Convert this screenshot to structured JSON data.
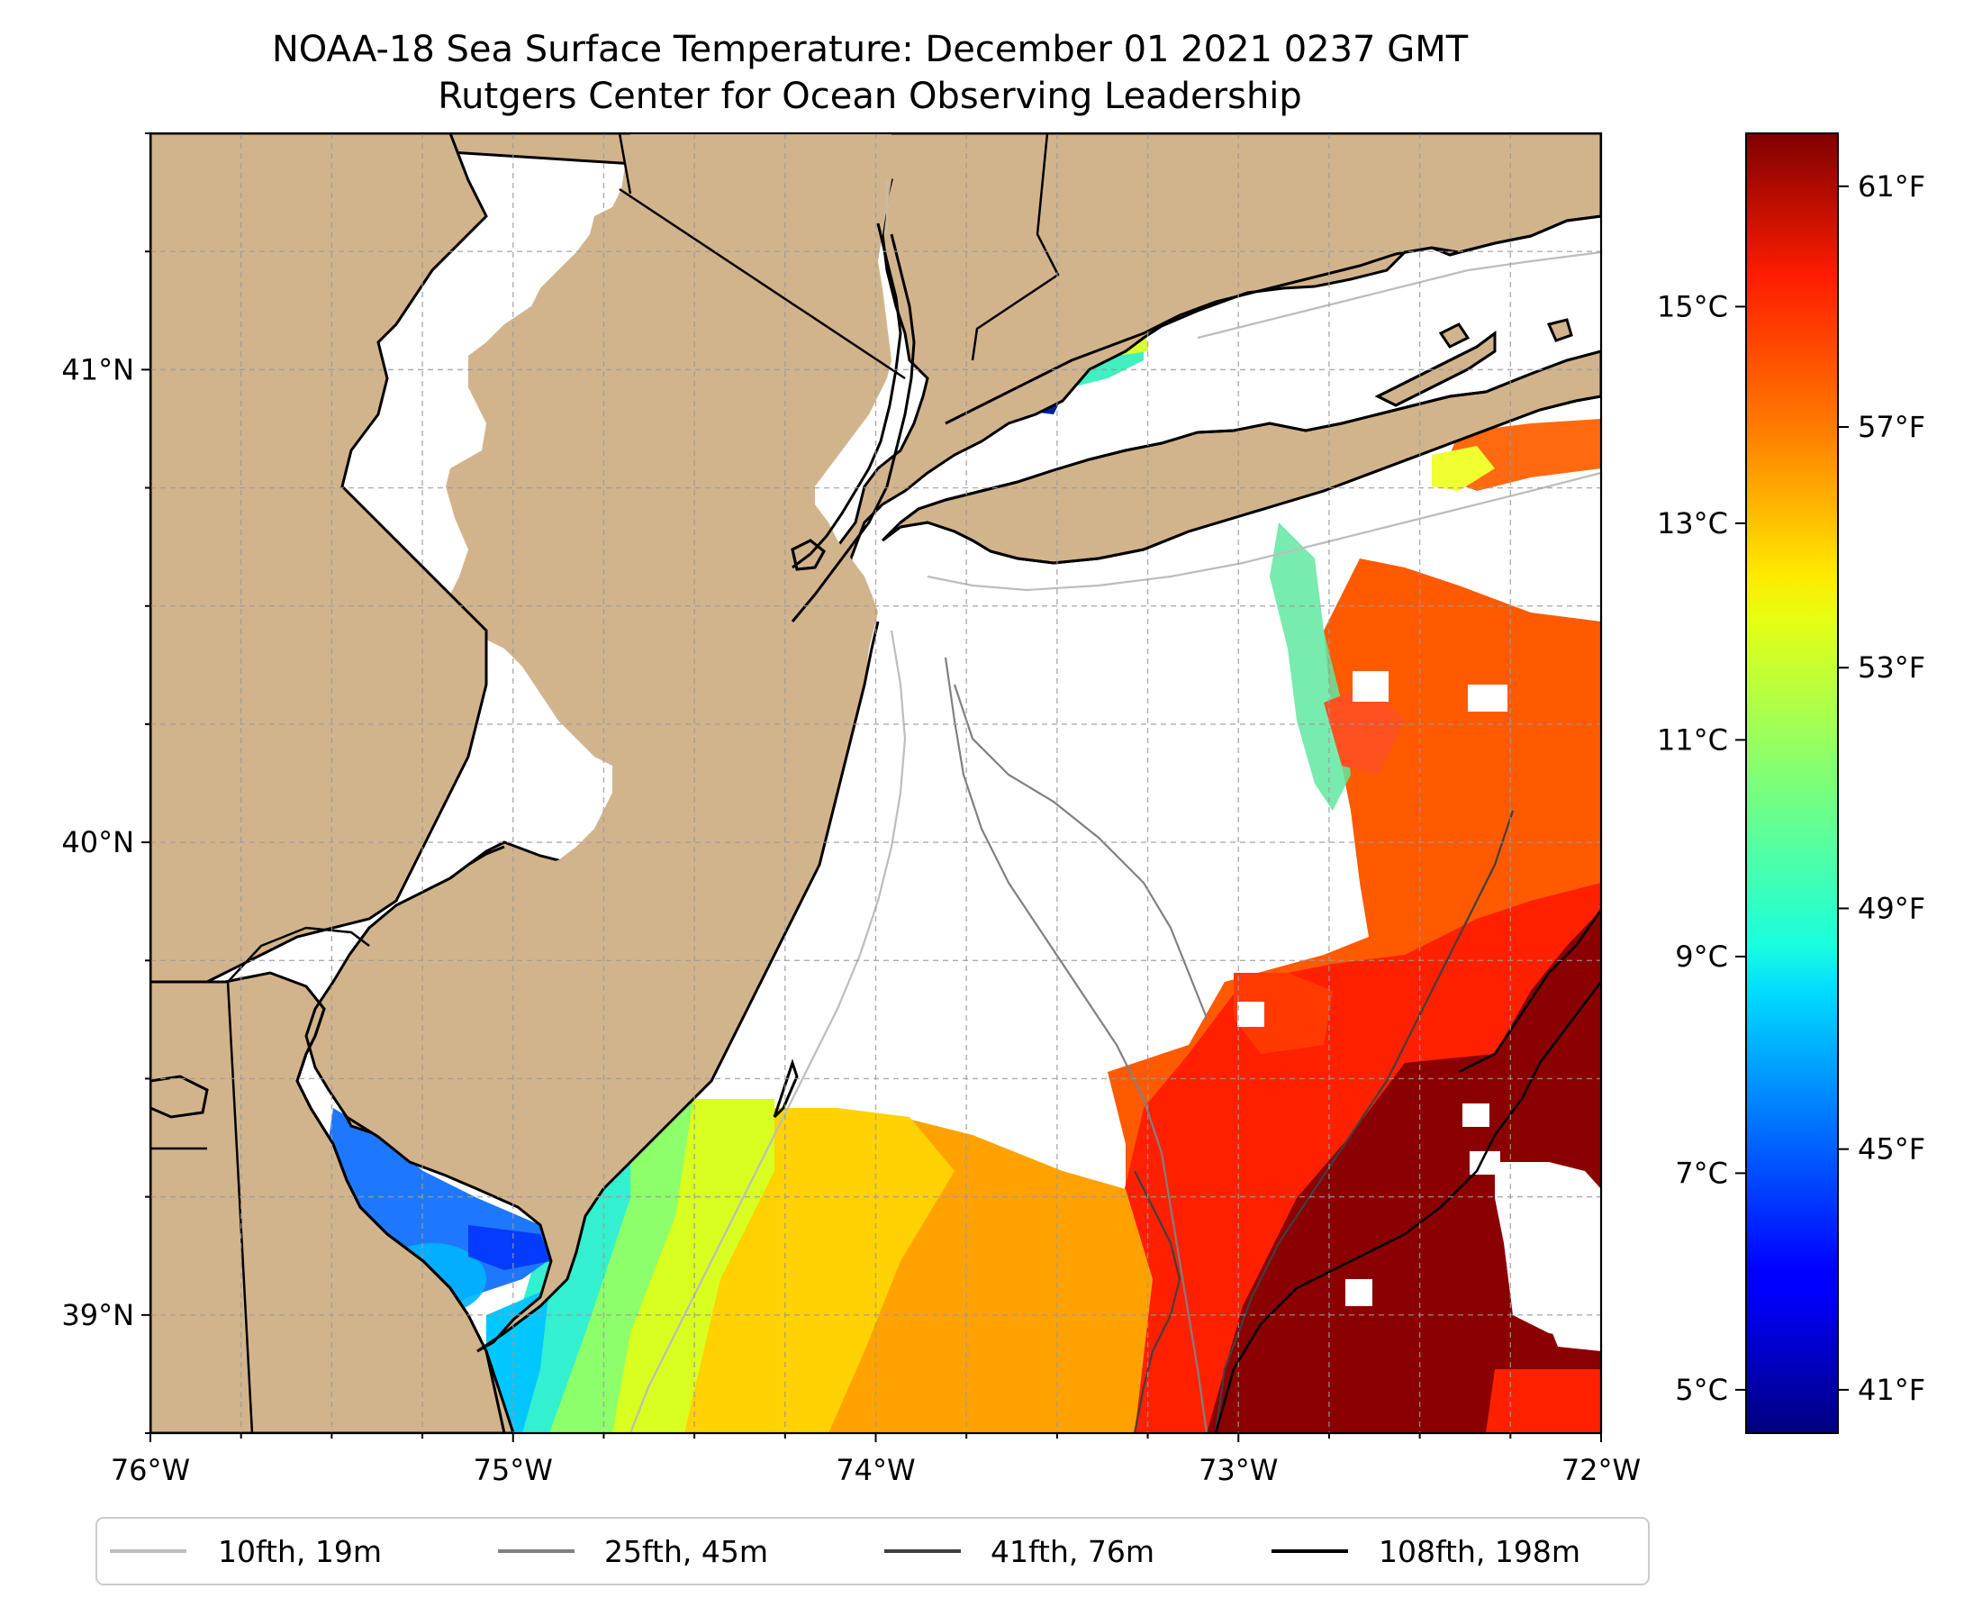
{
  "title": {
    "line1": "NOAA-18 Sea Surface Temperature: December 01 2021 0237 GMT",
    "line2": "Rutgers Center for Ocean Observing Leadership"
  },
  "map": {
    "lon_range": [
      -76,
      -72
    ],
    "lat_range": [
      38.75,
      41.5
    ],
    "land_color": "#d2b48c",
    "ocean_nodata_color": "#ffffff",
    "grid": true,
    "lon_ticks": [
      {
        "value": -76,
        "label": "76°W"
      },
      {
        "value": -75,
        "label": "75°W"
      },
      {
        "value": -74,
        "label": "74°W"
      },
      {
        "value": -73,
        "label": "73°W"
      },
      {
        "value": -72,
        "label": "72°W"
      }
    ],
    "lat_ticks": [
      {
        "value": 41,
        "label": "41°N"
      },
      {
        "value": 40,
        "label": "40°N"
      },
      {
        "value": 39,
        "label": "39°N"
      }
    ]
  },
  "colorbar": {
    "colormap": "jet",
    "celsius_range": [
      4.6,
      16.6
    ],
    "celsius_ticks": [
      {
        "value": 5,
        "label": "5°C"
      },
      {
        "value": 7,
        "label": "7°C"
      },
      {
        "value": 9,
        "label": "9°C"
      },
      {
        "value": 11,
        "label": "11°C"
      },
      {
        "value": 13,
        "label": "13°C"
      },
      {
        "value": 15,
        "label": "15°C"
      }
    ],
    "fahrenheit_ticks": [
      {
        "value": 41,
        "label": "41°F"
      },
      {
        "value": 45,
        "label": "45°F"
      },
      {
        "value": 49,
        "label": "49°F"
      },
      {
        "value": 53,
        "label": "53°F"
      },
      {
        "value": 57,
        "label": "57°F"
      },
      {
        "value": 61,
        "label": "61°F"
      }
    ]
  },
  "legend": {
    "placement": "bottom-center",
    "entries": [
      {
        "label": "10fth, 19m",
        "color": "#bdbdbd"
      },
      {
        "label": "25fth, 45m",
        "color": "#808080"
      },
      {
        "label": "41fth, 76m",
        "color": "#404040"
      },
      {
        "label": "108fth, 198m",
        "color": "#000000"
      }
    ]
  },
  "sst_anchor_points_degC": [
    {
      "lon": -75.2,
      "lat": 39.1,
      "t": 7.0
    },
    {
      "lon": -75.0,
      "lat": 39.15,
      "t": 8.5
    },
    {
      "lon": -74.5,
      "lat": 39.2,
      "t": 10.0
    },
    {
      "lon": -74.2,
      "lat": 39.1,
      "t": 11.5
    },
    {
      "lon": -74.0,
      "lat": 39.1,
      "t": 12.2
    },
    {
      "lon": -73.6,
      "lat": 39.0,
      "t": 13.0
    },
    {
      "lon": -73.2,
      "lat": 39.0,
      "t": 14.0
    },
    {
      "lon": -73.0,
      "lat": 39.3,
      "t": 14.8
    },
    {
      "lon": -72.5,
      "lat": 39.0,
      "t": 16.0
    },
    {
      "lon": -72.6,
      "lat": 39.8,
      "t": 15.0
    },
    {
      "lon": -72.6,
      "lat": 40.2,
      "t": 14.2
    },
    {
      "lon": -72.8,
      "lat": 40.5,
      "t": 12.0
    },
    {
      "lon": -72.5,
      "lat": 40.85,
      "t": 12.5
    }
  ]
}
